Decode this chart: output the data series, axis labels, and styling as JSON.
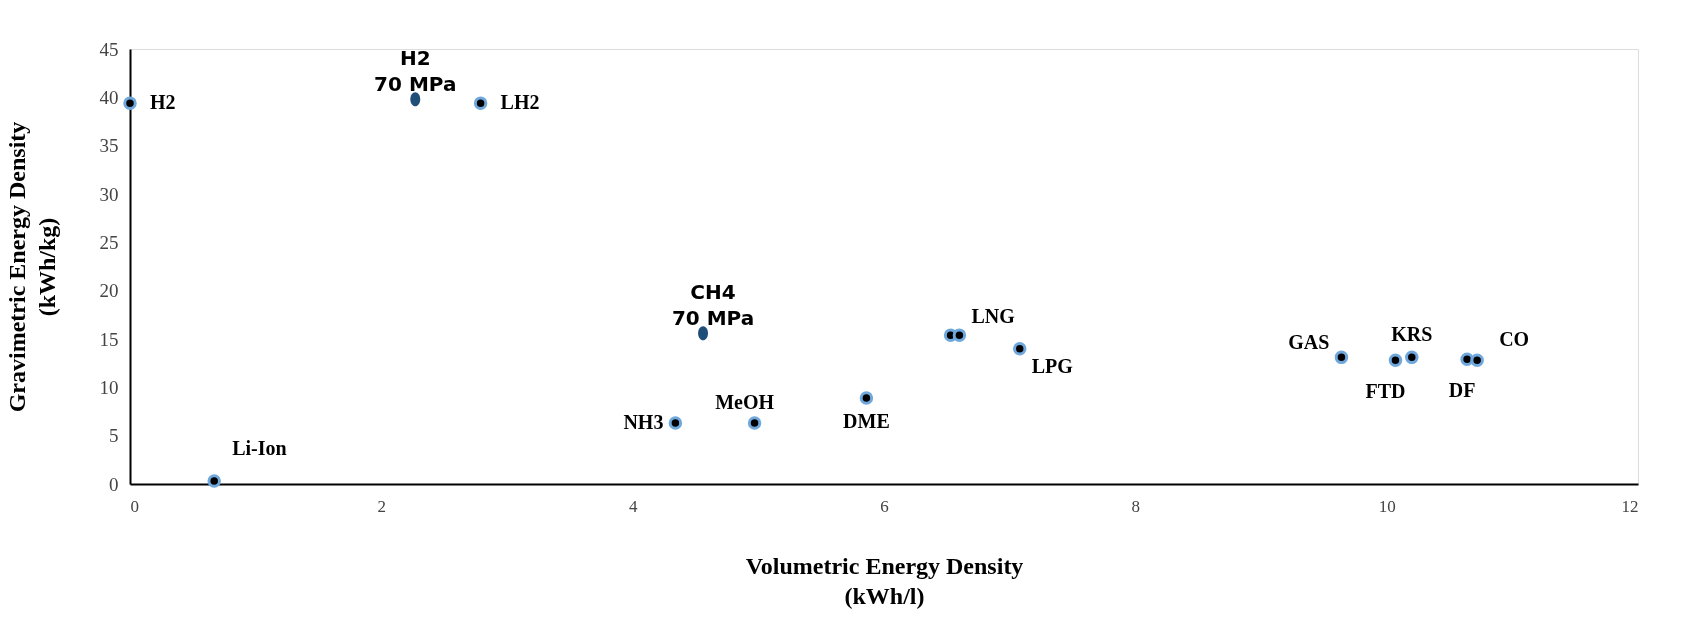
{
  "chart_data": {
    "type": "scatter",
    "xlabel": "Volumetric Energy Density\n(kWh/l)",
    "ylabel": "Gravimetric Energy Density\n(kWh/kg)",
    "xlim": [
      0,
      12
    ],
    "xticks": [
      0,
      2,
      4,
      6,
      8,
      10,
      12
    ],
    "ylim": [
      0,
      45
    ],
    "yticks": [
      0,
      5,
      10,
      15,
      20,
      25,
      30,
      35,
      40,
      45
    ],
    "grid": false,
    "marker": "circle",
    "series": [
      {
        "color": "#000000",
        "x": [
          0,
          2.79,
          0.67,
          4.34,
          4.97,
          5.86,
          6.53,
          6.6,
          7.08,
          9.64,
          10.07,
          10.2,
          10.64,
          10.72
        ],
        "values": [
          39.4,
          39.4,
          0.3,
          6.3,
          6.3,
          8.9,
          15.4,
          15.4,
          14.0,
          13.1,
          12.8,
          13.1,
          12.9,
          12.8
        ]
      },
      {
        "color": "#1f4e79",
        "x": [
          2.27,
          4.56
        ],
        "values": [
          39.8,
          15.6
        ]
      }
    ],
    "annotations": [
      {
        "text": "H2",
        "x": 0,
        "y": 39.4
      },
      {
        "text": "H2\n70 MPa",
        "x": 2.27,
        "y": 39.8
      },
      {
        "text": "LH2",
        "x": 2.79,
        "y": 39.4
      },
      {
        "text": "Li-Ion",
        "x": 0.67,
        "y": 0.3
      },
      {
        "text": "CH4\n70 MPa",
        "x": 4.56,
        "y": 15.6
      },
      {
        "text": "NH3",
        "x": 4.34,
        "y": 6.3
      },
      {
        "text": "MeOH",
        "x": 4.97,
        "y": 6.3
      },
      {
        "text": "DME",
        "x": 5.86,
        "y": 8.9
      },
      {
        "text": "LNG",
        "x": 6.6,
        "y": 15.4
      },
      {
        "text": "LPG",
        "x": 7.08,
        "y": 14.0
      },
      {
        "text": "GAS",
        "x": 9.64,
        "y": 13.1
      },
      {
        "text": "FTD",
        "x": 10.07,
        "y": 12.8
      },
      {
        "text": "KRS",
        "x": 10.2,
        "y": 13.1
      },
      {
        "text": "DF",
        "x": 10.64,
        "y": 12.9
      },
      {
        "text": "CO",
        "x": 10.72,
        "y": 12.8
      }
    ]
  }
}
